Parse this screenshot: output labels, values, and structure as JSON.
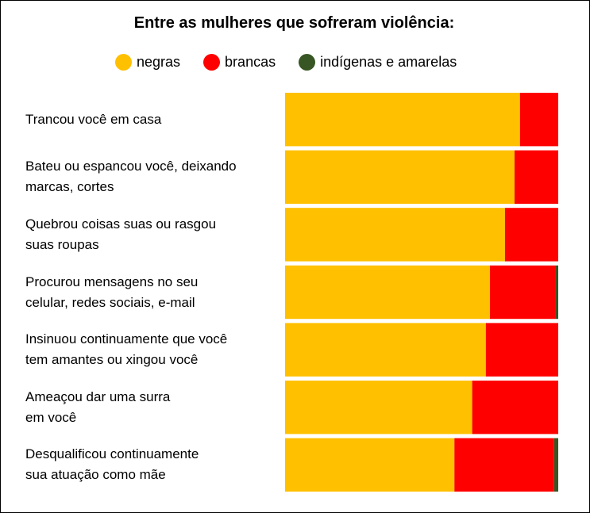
{
  "chart_data": {
    "type": "bar",
    "orientation": "horizontal",
    "stacked": true,
    "normalized": true,
    "title": "Entre as mulheres que sofreram violência:",
    "legend_position": "top",
    "grid": false,
    "xlim": [
      0,
      100
    ],
    "categories": [
      [
        "Trancou você em casa"
      ],
      [
        "Bateu ou espancou você, deixando",
        "marcas, cortes"
      ],
      [
        "Quebrou coisas suas ou rasgou",
        "suas roupas"
      ],
      [
        "Procurou mensagens no seu",
        "celular, redes sociais, e-mail"
      ],
      [
        "Insinuou continuamente que você",
        "tem amantes ou xingou você"
      ],
      [
        "Ameaçou dar uma surra",
        "em você"
      ],
      [
        "Desqualificou continuamente",
        "sua atuação como mãe"
      ]
    ],
    "series": [
      {
        "name": "negras",
        "color": "#FFC000",
        "values": [
          86,
          84,
          80.5,
          75,
          73.5,
          68.5,
          62
        ]
      },
      {
        "name": "brancas",
        "color": "#FF0000",
        "values": [
          14,
          16,
          19.5,
          24,
          26.5,
          31.5,
          36.5
        ]
      },
      {
        "name": "indígenas e amarelas",
        "color": "#375623",
        "values": [
          0,
          0,
          0,
          1,
          0,
          0,
          1.5
        ]
      }
    ]
  }
}
